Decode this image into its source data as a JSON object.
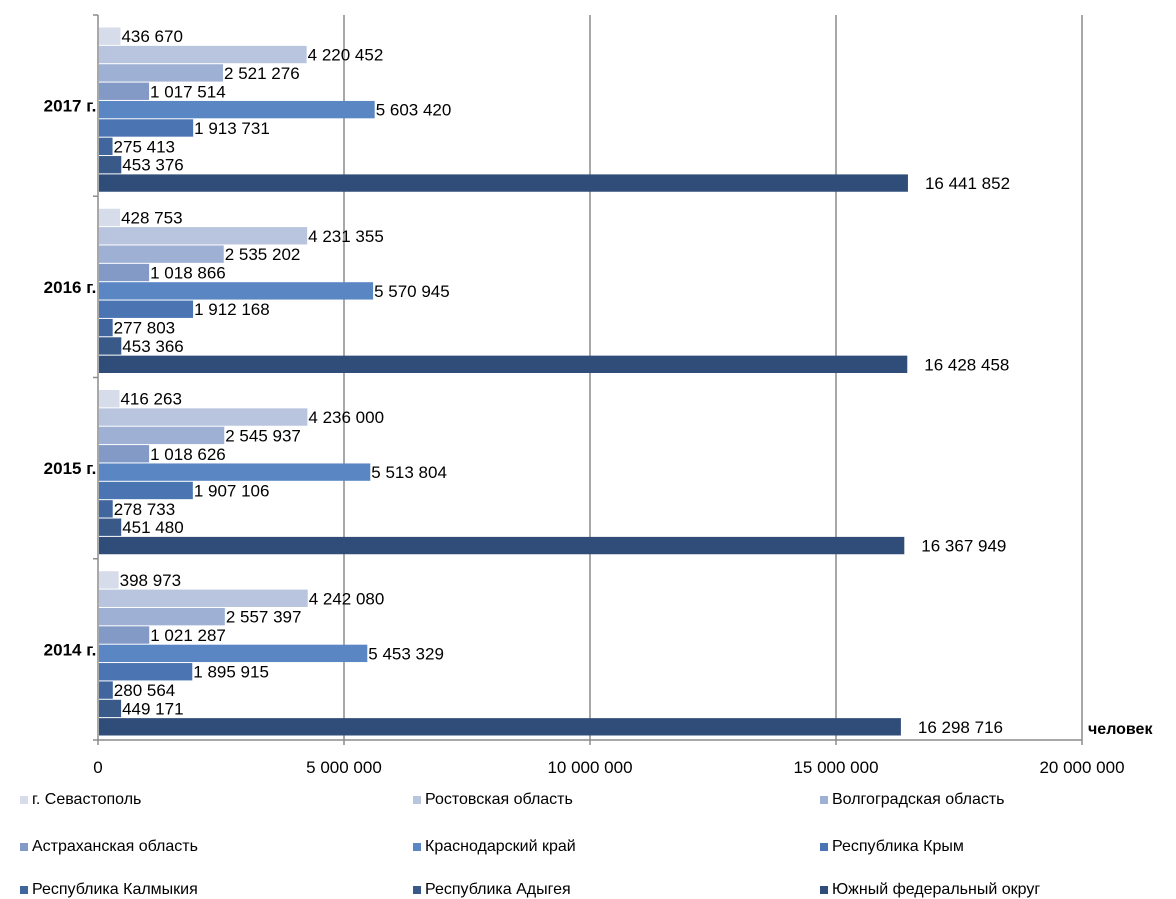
{
  "chart_data": {
    "type": "bar",
    "orientation": "horizontal",
    "categories": [
      "2014 г.",
      "2015 г.",
      "2016 г.",
      "2017 г."
    ],
    "unit_label": "человек",
    "xlim": [
      0,
      20000000
    ],
    "x_ticks": [
      0,
      5000000,
      10000000,
      15000000,
      20000000
    ],
    "x_tick_labels": [
      "0",
      "5 000 000",
      "10 000 000",
      "15 000 000",
      "20 000 000"
    ],
    "grid": true,
    "legend_position": "bottom",
    "series": [
      {
        "name": "г. Севастополь",
        "color": "#d6dcea",
        "values": [
          398973,
          416263,
          428753,
          436670
        ],
        "labels": [
          "398 973",
          "416 263",
          "428 753",
          "436 670"
        ]
      },
      {
        "name": "Ростовская область",
        "color": "#b9c5de",
        "values": [
          4242080,
          4236000,
          4231355,
          4220452
        ],
        "labels": [
          "4 242 080",
          "4 236 000",
          "4 231 355",
          "4 220 452"
        ]
      },
      {
        "name": "Волгоградская область",
        "color": "#9eb0d4",
        "values": [
          2557397,
          2545937,
          2535202,
          2521276
        ],
        "labels": [
          "2 557 397",
          "2 545 937",
          "2 535 202",
          "2 521 276"
        ]
      },
      {
        "name": "Астраханская область",
        "color": "#8399c6",
        "values": [
          1021287,
          1018626,
          1018866,
          1017514
        ],
        "labels": [
          "1 021 287",
          "1 018 626",
          "1 018 866",
          "1 017 514"
        ]
      },
      {
        "name": "Краснодарский край",
        "color": "#5a86c4",
        "values": [
          5453329,
          5513804,
          5570945,
          5603420
        ],
        "labels": [
          "5 453 329",
          "5 513 804",
          "5 570 945",
          "5 603 420"
        ]
      },
      {
        "name": "Республика Крым",
        "color": "#4a74b2",
        "values": [
          1895915,
          1907106,
          1912168,
          1913731
        ],
        "labels": [
          "1 895 915",
          "1 907 106",
          "1 912 168",
          "1 913 731"
        ]
      },
      {
        "name": "Республика Калмыкия",
        "color": "#41669d",
        "values": [
          280564,
          278733,
          277803,
          275413
        ],
        "labels": [
          "280 564",
          "278 733",
          "277 803",
          "275 413"
        ]
      },
      {
        "name": "Республика Адыгея",
        "color": "#395a89",
        "values": [
          449171,
          451480,
          453366,
          453376
        ],
        "labels": [
          "449 171",
          "451 480",
          "453 366",
          "453 376"
        ]
      },
      {
        "name": "Южный федеральный округ",
        "color": "#2f4d78",
        "values": [
          16298716,
          16367949,
          16428458,
          16441852
        ],
        "labels": [
          "16 298 716",
          "16 367 949",
          "16 428 458",
          "16 441 852"
        ]
      }
    ]
  }
}
